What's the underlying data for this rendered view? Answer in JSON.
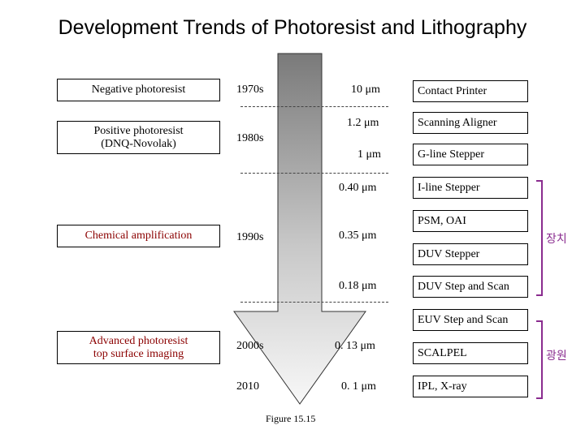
{
  "title": "Development Trends of Photoresist and Lithography",
  "photoresists": [
    "Negative photoresist",
    "Positive photoresist\n(DNQ-Novolak)",
    "Chemical amplification",
    "Advanced photoresist\ntop surface imaging"
  ],
  "photoresist_colors": [
    "#000000",
    "#000000",
    "#8b0000",
    "#8b0000"
  ],
  "eras": [
    "1970s",
    "1980s",
    "1990s",
    "2000s",
    "2010"
  ],
  "feature_sizes": [
    "10 μm",
    "1.2 μm",
    "1 μm",
    "0.40 μm",
    "0.35 μm",
    "0.18 μm",
    "0. 13 μm",
    "0. 1 μm"
  ],
  "tools": [
    "Contact Printer",
    "Scanning Aligner",
    "G-line Stepper",
    "I-line Stepper",
    "PSM, OAI",
    "DUV Stepper",
    "DUV Step and Scan",
    "EUV Step and Scan",
    "SCALPEL",
    "IPL, X-ray"
  ],
  "brackets": [
    "장치",
    "광원"
  ],
  "bracket_color": "#8a2c8f",
  "figure_caption": "Figure 15.15"
}
